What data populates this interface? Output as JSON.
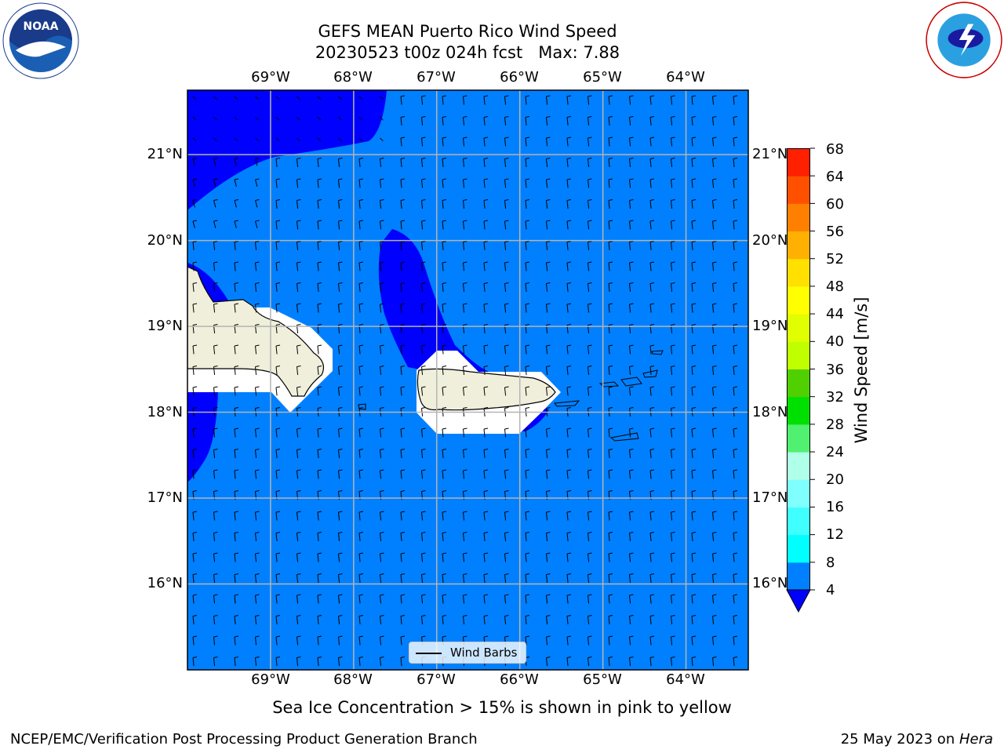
{
  "title": {
    "line1": "GEFS MEAN Puerto Rico Wind Speed",
    "line2": "20230523 t00z 024h fcst   Max: 7.88"
  },
  "map": {
    "lon_labels": [
      "69°W",
      "68°W",
      "67°W",
      "66°W",
      "65°W",
      "64°W"
    ],
    "lat_labels": [
      "21°N",
      "20°N",
      "19°N",
      "18°N",
      "17°N",
      "16°N"
    ],
    "lon_range": [
      -70.0,
      -63.25
    ],
    "lat_range": [
      15.0,
      21.75
    ],
    "gridlines": true,
    "colors": {
      "ocean_fill": "#0080ff",
      "low_speed_fill": "#0000ff",
      "land": "#efefdb",
      "masked": "#ffffff"
    },
    "legend": {
      "label": "Wind Barbs",
      "placement": "bottom-center"
    }
  },
  "colorbar": {
    "label": "Wind Speed [m/s]",
    "ticks": [
      "68",
      "64",
      "60",
      "56",
      "52",
      "48",
      "44",
      "40",
      "36",
      "32",
      "28",
      "24",
      "20",
      "16",
      "12",
      "8",
      "4"
    ],
    "levels": [
      4,
      8,
      12,
      16,
      20,
      24,
      28,
      32,
      36,
      40,
      44,
      48,
      52,
      56,
      60,
      64,
      68
    ],
    "colors": [
      "#0080ff",
      "#00ffff",
      "#40ffff",
      "#80ffff",
      "#b0ffe8",
      "#50f070",
      "#00e000",
      "#50d000",
      "#c0ff00",
      "#e0ff00",
      "#ffff00",
      "#ffe000",
      "#ffb000",
      "#ff8000",
      "#ff5000",
      "#ff2000"
    ],
    "under_color": "#0000ff"
  },
  "footnote": "Sea Ice Concentration > 15% is shown in pink to yellow",
  "footer": {
    "left": "NCEP/EMC/Verification Post Processing Product Generation Branch",
    "right_date": "25 May 2023 on ",
    "right_host": "Hera"
  },
  "logos": {
    "noaa": "noaa-logo",
    "nws": "national-weather-service-logo"
  }
}
